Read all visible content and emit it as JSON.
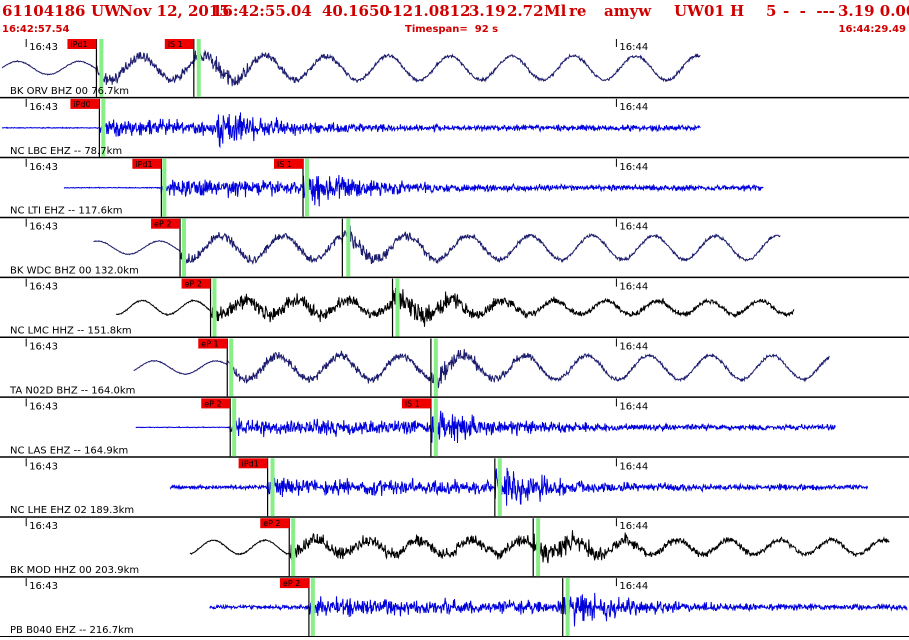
{
  "header": {
    "event_id": "61104186",
    "network": "UW",
    "date": "Nov 12, 2015",
    "time": "16:42:55.04",
    "lat": "40.1650",
    "lon": "-121.0812",
    "depth": "3.19",
    "magnitude": "2.72",
    "mag_type": "Ml",
    "review": "re",
    "author": "amyw",
    "source": "UW",
    "version": "01",
    "flag": "H",
    "count": "5",
    "dashes": "-  -  ---",
    "fit": "3.19 0.00"
  },
  "subheader": {
    "start_time": "16:42:57.54",
    "timespan": "Timespan=  92 s",
    "end_time": "16:44:29.49"
  },
  "chart_data": {
    "type": "line",
    "title": "61104186 UW Nov 12, 2015 16:42:55.04",
    "time_start_s": 0,
    "time_end_s": 92,
    "minute_marks": [
      {
        "label": "16:43",
        "t": 2.46
      },
      {
        "label": "16:44",
        "t": 62.46
      }
    ],
    "colors": {
      "pick_red": "#ee0000",
      "pick_green": "#88ee88",
      "blue_trace": "#0000dd",
      "navy_trace": "#1c1c6e",
      "black_trace": "#000000",
      "red_text": "#d00000"
    },
    "traces": [
      {
        "label": "BK ORV BHZ 00 76.7km",
        "color": "#1c1c6e",
        "start_s": 0,
        "end_s": 71,
        "picks": [
          {
            "phase": "iPd1",
            "t": 9.6,
            "g": 9.9
          },
          {
            "phase": "iS 1",
            "t": 19.5,
            "g": 19.8
          }
        ]
      },
      {
        "label": "NC LBC EHZ -- 78.7km",
        "color": "#0000dd",
        "start_s": 0,
        "end_s": 71,
        "picks": [
          {
            "phase": "iPd0",
            "t": 9.9,
            "g": 10.1
          }
        ]
      },
      {
        "label": "NC LTI EHZ -- 117.6km",
        "color": "#0000dd",
        "start_s": 6.3,
        "end_s": 77.4,
        "picks": [
          {
            "phase": "iPd1",
            "t": 16.2,
            "g": 16.3
          },
          {
            "phase": "iS 1",
            "t": 30.6,
            "g": 30.8
          }
        ]
      },
      {
        "label": "BK WDC BHZ 00 132.0km",
        "color": "#1c1c6e",
        "start_s": 9.3,
        "end_s": 79.1,
        "picks": [
          {
            "phase": "eP 2",
            "t": 18.1,
            "g": 18.3
          },
          {
            "phase": "",
            "t": 34.6,
            "g": 35.0
          }
        ]
      },
      {
        "label": "NC LMC HHZ -- 151.8km",
        "color": "#000000",
        "start_s": 11.6,
        "end_s": 80.5,
        "picks": [
          {
            "phase": "eP 2",
            "t": 21.2,
            "g": 21.4
          },
          {
            "phase": "",
            "t": 39.7,
            "g": 40.0
          }
        ]
      },
      {
        "label": "TA N02D BHZ -- 164.0km",
        "color": "#1c1c6e",
        "start_s": 13.4,
        "end_s": 84.1,
        "picks": [
          {
            "phase": "eP 1",
            "t": 22.9,
            "g": 23.1
          },
          {
            "phase": "",
            "t": 43.6,
            "g": 43.9
          }
        ]
      },
      {
        "label": "NC LAS EHZ -- 164.9km",
        "color": "#0000dd",
        "start_s": 13.6,
        "end_s": 84.7,
        "picks": [
          {
            "phase": "eP 2",
            "t": 23.2,
            "g": 23.4
          },
          {
            "phase": "iS 1",
            "t": 43.6,
            "g": 43.9
          }
        ]
      },
      {
        "label": "NC LHE EHZ 02 189.3km",
        "color": "#0000dd",
        "start_s": 17.1,
        "end_s": 88.0,
        "picks": [
          {
            "phase": "iPd1",
            "t": 27.0,
            "g": 27.3
          },
          {
            "phase": "",
            "t": 50.1,
            "g": 50.4
          }
        ]
      },
      {
        "label": "BK MOD HHZ 00 203.9km",
        "color": "#000000",
        "start_s": 19.1,
        "end_s": 90.2,
        "picks": [
          {
            "phase": "eP 2",
            "t": 29.2,
            "g": 29.4
          },
          {
            "phase": "",
            "t": 54.0,
            "g": 54.3
          }
        ]
      },
      {
        "label": "PB B040 EHZ -- 216.7km",
        "color": "#0000dd",
        "start_s": 21.1,
        "end_s": 92.0,
        "picks": [
          {
            "phase": "eP 2",
            "t": 31.2,
            "g": 31.4
          },
          {
            "phase": "",
            "t": 57.0,
            "g": 57.3
          }
        ]
      }
    ]
  }
}
